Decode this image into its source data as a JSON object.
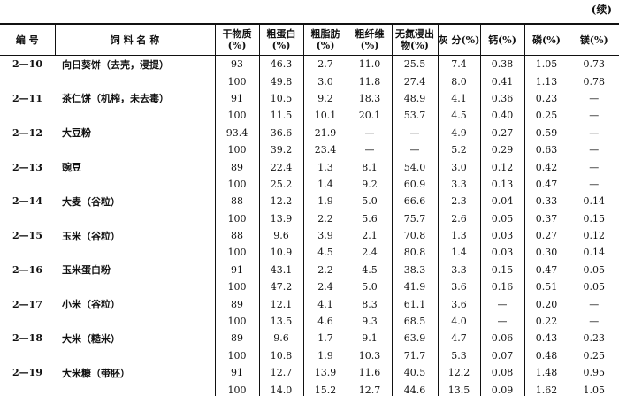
{
  "note": "(续)",
  "table": {
    "header": [
      "编 号",
      "饲 料 名 称",
      "干物质(%)",
      "粗蛋白(%)",
      "粗脂肪(%)",
      "粗纤维(%)",
      "无氮浸出物(%)",
      "灰 分(%)",
      "钙(%)",
      "磷(%)",
      "镁(%)"
    ],
    "items": [
      {
        "id": "2—10",
        "name": "向日葵饼（去壳，浸提）",
        "rows": [
          [
            "93",
            "46.3",
            "2.7",
            "11.0",
            "25.5",
            "7.4",
            "0.38",
            "1.05",
            "0.73"
          ],
          [
            "100",
            "49.8",
            "3.0",
            "11.8",
            "27.4",
            "8.0",
            "0.41",
            "1.13",
            "0.78"
          ]
        ]
      },
      {
        "id": "2—11",
        "name": "茶仁饼（机榨，未去毒）",
        "rows": [
          [
            "91",
            "10.5",
            "9.2",
            "18.3",
            "48.9",
            "4.1",
            "0.36",
            "0.23",
            "—"
          ],
          [
            "100",
            "11.5",
            "10.1",
            "20.1",
            "53.7",
            "4.5",
            "0.40",
            "0.25",
            "—"
          ]
        ]
      },
      {
        "id": "2—12",
        "name": "大豆粉",
        "rows": [
          [
            "93.4",
            "36.6",
            "21.9",
            "—",
            "—",
            "4.9",
            "0.27",
            "0.59",
            "—"
          ],
          [
            "100",
            "39.2",
            "23.4",
            "—",
            "—",
            "5.2",
            "0.29",
            "0.63",
            "—"
          ]
        ]
      },
      {
        "id": "2—13",
        "name": "豌豆",
        "rows": [
          [
            "89",
            "22.4",
            "1.3",
            "8.1",
            "54.0",
            "3.0",
            "0.12",
            "0.42",
            "—"
          ],
          [
            "100",
            "25.2",
            "1.4",
            "9.2",
            "60.9",
            "3.3",
            "0.13",
            "0.47",
            "—"
          ]
        ]
      },
      {
        "id": "2—14",
        "name": "大麦（谷粒）",
        "rows": [
          [
            "88",
            "12.2",
            "1.9",
            "5.0",
            "66.6",
            "2.3",
            "0.04",
            "0.33",
            "0.14"
          ],
          [
            "100",
            "13.9",
            "2.2",
            "5.6",
            "75.7",
            "2.6",
            "0.05",
            "0.37",
            "0.15"
          ]
        ]
      },
      {
        "id": "2—15",
        "name": "玉米（谷粒）",
        "rows": [
          [
            "88",
            "9.6",
            "3.9",
            "2.1",
            "70.8",
            "1.3",
            "0.03",
            "0.27",
            "0.12"
          ],
          [
            "100",
            "10.9",
            "4.5",
            "2.4",
            "80.8",
            "1.4",
            "0.03",
            "0.30",
            "0.14"
          ]
        ]
      },
      {
        "id": "2—16",
        "name": "玉米蛋白粉",
        "rows": [
          [
            "91",
            "43.1",
            "2.2",
            "4.5",
            "38.3",
            "3.3",
            "0.15",
            "0.47",
            "0.05"
          ],
          [
            "100",
            "47.2",
            "2.4",
            "5.0",
            "41.9",
            "3.6",
            "0.16",
            "0.51",
            "0.05"
          ]
        ]
      },
      {
        "id": "2—17",
        "name": "小米（谷粒）",
        "rows": [
          [
            "89",
            "12.1",
            "4.1",
            "8.3",
            "61.1",
            "3.6",
            "—",
            "0.20",
            "—"
          ],
          [
            "100",
            "13.5",
            "4.6",
            "9.3",
            "68.5",
            "4.0",
            "—",
            "0.22",
            "—"
          ]
        ]
      },
      {
        "id": "2—18",
        "name": "大米（糙米）",
        "rows": [
          [
            "89",
            "9.6",
            "1.7",
            "9.1",
            "63.9",
            "4.7",
            "0.06",
            "0.43",
            "0.23"
          ],
          [
            "100",
            "10.8",
            "1.9",
            "10.3",
            "71.7",
            "5.3",
            "0.07",
            "0.48",
            "0.25"
          ]
        ]
      },
      {
        "id": "2—19",
        "name": "大米糠（带胚）",
        "rows": [
          [
            "91",
            "12.7",
            "13.9",
            "11.6",
            "40.5",
            "12.2",
            "0.08",
            "1.48",
            "0.95"
          ],
          [
            "100",
            "14.0",
            "15.2",
            "12.7",
            "44.6",
            "13.5",
            "0.09",
            "1.62",
            "1.05"
          ]
        ]
      }
    ]
  }
}
